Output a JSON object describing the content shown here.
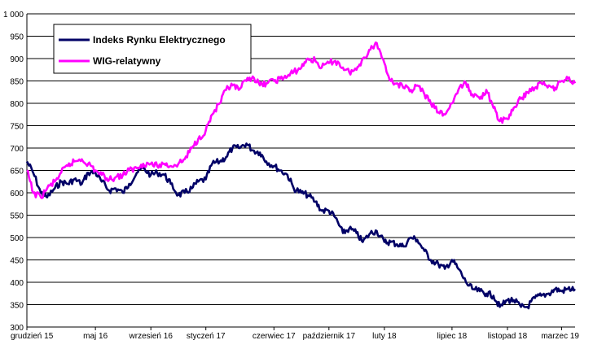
{
  "chart_data": {
    "type": "line",
    "title": "",
    "xlabel": "",
    "ylabel": "",
    "ylim": [
      300,
      1000
    ],
    "yticks": [
      300,
      350,
      400,
      450,
      500,
      550,
      600,
      650,
      700,
      750,
      800,
      850,
      900,
      950,
      1000
    ],
    "ytick_labels": [
      "300",
      "350",
      "400",
      "450",
      "500",
      "550",
      "600",
      "650",
      "700",
      "750",
      "800",
      "850",
      "900",
      "950",
      "1 000"
    ],
    "x_range": [
      "2015-12-01",
      "2019-03-31"
    ],
    "xticks": [
      {
        "date": "2015-12-01",
        "label": "grudzień 15"
      },
      {
        "date": "2016-05-01",
        "label": "maj 16"
      },
      {
        "date": "2016-09-01",
        "label": "wrzesień 16"
      },
      {
        "date": "2017-01-01",
        "label": "styczeń 17"
      },
      {
        "date": "2017-06-01",
        "label": "czerwiec 17"
      },
      {
        "date": "2017-10-01",
        "label": "październik 17"
      },
      {
        "date": "2018-02-01",
        "label": "luty 18"
      },
      {
        "date": "2018-07-01",
        "label": "lipiec 18"
      },
      {
        "date": "2018-11-01",
        "label": "listopad 18"
      },
      {
        "date": "2019-03-01",
        "label": "marzec 19"
      }
    ],
    "grid": "horizontal",
    "legend_position": "top-left",
    "series": [
      {
        "name": "Indeks Rynku Elektrycznego",
        "color": "#000066",
        "points": [
          [
            "2015-12-01",
            670
          ],
          [
            "2015-12-15",
            645
          ],
          [
            "2016-01-01",
            600
          ],
          [
            "2016-01-15",
            590
          ],
          [
            "2016-02-01",
            610
          ],
          [
            "2016-02-15",
            625
          ],
          [
            "2016-03-01",
            620
          ],
          [
            "2016-03-15",
            630
          ],
          [
            "2016-04-01",
            620
          ],
          [
            "2016-04-15",
            645
          ],
          [
            "2016-05-01",
            645
          ],
          [
            "2016-05-15",
            625
          ],
          [
            "2016-06-01",
            605
          ],
          [
            "2016-06-15",
            610
          ],
          [
            "2016-07-01",
            600
          ],
          [
            "2016-07-15",
            620
          ],
          [
            "2016-08-01",
            645
          ],
          [
            "2016-08-15",
            655
          ],
          [
            "2016-09-01",
            640
          ],
          [
            "2016-09-15",
            645
          ],
          [
            "2016-10-01",
            640
          ],
          [
            "2016-10-15",
            620
          ],
          [
            "2016-11-01",
            595
          ],
          [
            "2016-11-15",
            600
          ],
          [
            "2016-12-01",
            610
          ],
          [
            "2016-12-15",
            625
          ],
          [
            "2017-01-01",
            630
          ],
          [
            "2017-01-15",
            665
          ],
          [
            "2017-02-01",
            670
          ],
          [
            "2017-02-15",
            680
          ],
          [
            "2017-03-01",
            700
          ],
          [
            "2017-03-15",
            700
          ],
          [
            "2017-04-01",
            710
          ],
          [
            "2017-04-15",
            695
          ],
          [
            "2017-05-01",
            690
          ],
          [
            "2017-05-15",
            670
          ],
          [
            "2017-06-01",
            660
          ],
          [
            "2017-06-15",
            650
          ],
          [
            "2017-07-01",
            640
          ],
          [
            "2017-07-15",
            610
          ],
          [
            "2017-08-01",
            600
          ],
          [
            "2017-08-15",
            595
          ],
          [
            "2017-09-01",
            580
          ],
          [
            "2017-09-15",
            560
          ],
          [
            "2017-10-01",
            560
          ],
          [
            "2017-10-15",
            545
          ],
          [
            "2017-11-01",
            510
          ],
          [
            "2017-11-15",
            520
          ],
          [
            "2017-12-01",
            510
          ],
          [
            "2017-12-15",
            490
          ],
          [
            "2018-01-01",
            510
          ],
          [
            "2018-01-15",
            515
          ],
          [
            "2018-02-01",
            490
          ],
          [
            "2018-02-15",
            490
          ],
          [
            "2018-03-01",
            485
          ],
          [
            "2018-03-15",
            480
          ],
          [
            "2018-04-01",
            500
          ],
          [
            "2018-04-15",
            495
          ],
          [
            "2018-05-01",
            470
          ],
          [
            "2018-05-15",
            450
          ],
          [
            "2018-06-01",
            440
          ],
          [
            "2018-06-15",
            430
          ],
          [
            "2018-07-01",
            450
          ],
          [
            "2018-07-15",
            430
          ],
          [
            "2018-08-01",
            400
          ],
          [
            "2018-08-15",
            385
          ],
          [
            "2018-09-01",
            380
          ],
          [
            "2018-09-15",
            375
          ],
          [
            "2018-10-01",
            370
          ],
          [
            "2018-10-15",
            345
          ],
          [
            "2018-11-01",
            360
          ],
          [
            "2018-11-15",
            360
          ],
          [
            "2018-12-01",
            345
          ],
          [
            "2018-12-15",
            345
          ],
          [
            "2019-01-01",
            365
          ],
          [
            "2019-01-15",
            370
          ],
          [
            "2019-02-01",
            375
          ],
          [
            "2019-02-15",
            385
          ],
          [
            "2019-03-01",
            380
          ],
          [
            "2019-03-15",
            385
          ],
          [
            "2019-03-31",
            385
          ]
        ]
      },
      {
        "name": "WIG-relatywny",
        "color": "#ff00ff",
        "points": [
          [
            "2015-12-01",
            650
          ],
          [
            "2015-12-15",
            600
          ],
          [
            "2016-01-01",
            590
          ],
          [
            "2016-01-15",
            610
          ],
          [
            "2016-02-01",
            625
          ],
          [
            "2016-02-15",
            645
          ],
          [
            "2016-03-01",
            660
          ],
          [
            "2016-03-15",
            670
          ],
          [
            "2016-04-01",
            675
          ],
          [
            "2016-04-15",
            665
          ],
          [
            "2016-05-01",
            650
          ],
          [
            "2016-05-15",
            640
          ],
          [
            "2016-06-01",
            630
          ],
          [
            "2016-06-15",
            635
          ],
          [
            "2016-07-01",
            640
          ],
          [
            "2016-07-15",
            650
          ],
          [
            "2016-08-01",
            655
          ],
          [
            "2016-08-15",
            665
          ],
          [
            "2016-09-01",
            665
          ],
          [
            "2016-09-15",
            660
          ],
          [
            "2016-10-01",
            665
          ],
          [
            "2016-10-15",
            660
          ],
          [
            "2016-11-01",
            665
          ],
          [
            "2016-11-15",
            675
          ],
          [
            "2016-12-01",
            700
          ],
          [
            "2016-12-15",
            720
          ],
          [
            "2017-01-01",
            740
          ],
          [
            "2017-01-15",
            775
          ],
          [
            "2017-02-01",
            800
          ],
          [
            "2017-02-15",
            830
          ],
          [
            "2017-03-01",
            840
          ],
          [
            "2017-03-15",
            830
          ],
          [
            "2017-04-01",
            850
          ],
          [
            "2017-04-15",
            860
          ],
          [
            "2017-05-01",
            840
          ],
          [
            "2017-05-15",
            845
          ],
          [
            "2017-06-01",
            850
          ],
          [
            "2017-06-15",
            855
          ],
          [
            "2017-07-01",
            860
          ],
          [
            "2017-07-15",
            870
          ],
          [
            "2017-08-01",
            880
          ],
          [
            "2017-08-15",
            900
          ],
          [
            "2017-09-01",
            895
          ],
          [
            "2017-09-15",
            880
          ],
          [
            "2017-10-01",
            890
          ],
          [
            "2017-10-15",
            895
          ],
          [
            "2017-11-01",
            880
          ],
          [
            "2017-11-15",
            870
          ],
          [
            "2017-12-01",
            875
          ],
          [
            "2017-12-15",
            900
          ],
          [
            "2018-01-01",
            920
          ],
          [
            "2018-01-15",
            935
          ],
          [
            "2018-02-01",
            890
          ],
          [
            "2018-02-15",
            850
          ],
          [
            "2018-03-01",
            845
          ],
          [
            "2018-03-15",
            835
          ],
          [
            "2018-04-01",
            830
          ],
          [
            "2018-04-15",
            840
          ],
          [
            "2018-05-01",
            820
          ],
          [
            "2018-05-15",
            800
          ],
          [
            "2018-06-01",
            780
          ],
          [
            "2018-06-15",
            775
          ],
          [
            "2018-07-01",
            800
          ],
          [
            "2018-07-15",
            830
          ],
          [
            "2018-08-01",
            845
          ],
          [
            "2018-08-15",
            820
          ],
          [
            "2018-09-01",
            810
          ],
          [
            "2018-09-15",
            830
          ],
          [
            "2018-10-01",
            790
          ],
          [
            "2018-10-15",
            760
          ],
          [
            "2018-11-01",
            765
          ],
          [
            "2018-11-15",
            790
          ],
          [
            "2018-12-01",
            810
          ],
          [
            "2018-12-15",
            825
          ],
          [
            "2019-01-01",
            835
          ],
          [
            "2019-01-15",
            845
          ],
          [
            "2019-02-01",
            840
          ],
          [
            "2019-02-15",
            835
          ],
          [
            "2019-03-01",
            850
          ],
          [
            "2019-03-15",
            855
          ],
          [
            "2019-03-31",
            845
          ]
        ]
      }
    ]
  }
}
